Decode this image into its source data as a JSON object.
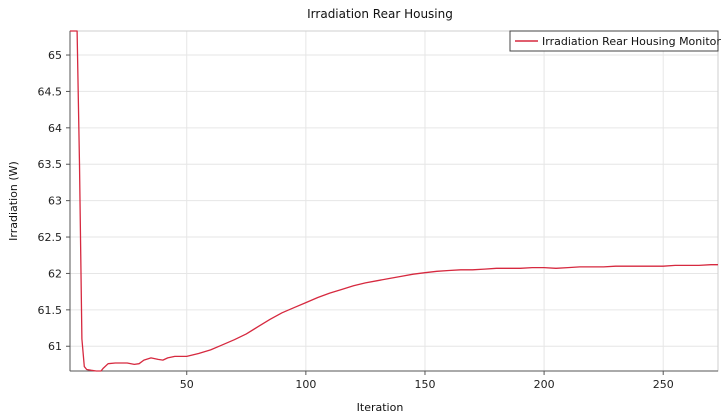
{
  "chart_data": {
    "type": "line",
    "title": "Irradiation Rear Housing",
    "xlabel": "Iteration",
    "ylabel": "Irradiation (W)",
    "xlim": [
      1,
      273
    ],
    "ylim": [
      60.66,
      65.33
    ],
    "xticks": [
      50,
      100,
      150,
      200,
      250
    ],
    "yticks": [
      61,
      61.5,
      62,
      62.5,
      63,
      63.5,
      64,
      64.5,
      65
    ],
    "grid": true,
    "legend_position": "top-right",
    "colors": {
      "series": "#d6293f",
      "grid": "#e6e6e6",
      "axis": "#555555"
    },
    "series": [
      {
        "name": "Irradiation Rear Housing Monitor",
        "x": [
          1,
          4,
          5,
          6,
          7,
          8,
          10,
          12,
          13,
          14,
          15,
          17,
          20,
          25,
          28,
          30,
          32,
          35,
          38,
          40,
          42,
          45,
          50,
          55,
          60,
          65,
          70,
          75,
          80,
          85,
          90,
          95,
          100,
          105,
          110,
          115,
          120,
          125,
          130,
          135,
          140,
          145,
          150,
          155,
          160,
          165,
          170,
          175,
          180,
          185,
          190,
          195,
          200,
          205,
          210,
          215,
          220,
          225,
          230,
          235,
          240,
          245,
          250,
          255,
          260,
          265,
          270,
          273
        ],
        "y": [
          65.33,
          65.33,
          63.5,
          61.1,
          60.72,
          60.68,
          60.67,
          60.66,
          60.66,
          60.66,
          60.7,
          60.76,
          60.77,
          60.77,
          60.75,
          60.76,
          60.81,
          60.84,
          60.82,
          60.81,
          60.84,
          60.86,
          60.86,
          60.9,
          60.95,
          61.02,
          61.09,
          61.17,
          61.27,
          61.37,
          61.46,
          61.53,
          61.6,
          61.67,
          61.73,
          61.78,
          61.83,
          61.87,
          61.9,
          61.93,
          61.96,
          61.99,
          62.01,
          62.03,
          62.04,
          62.05,
          62.05,
          62.06,
          62.07,
          62.07,
          62.07,
          62.08,
          62.08,
          62.07,
          62.08,
          62.09,
          62.09,
          62.09,
          62.1,
          62.1,
          62.1,
          62.1,
          62.1,
          62.11,
          62.11,
          62.11,
          62.12,
          62.12
        ]
      }
    ]
  }
}
